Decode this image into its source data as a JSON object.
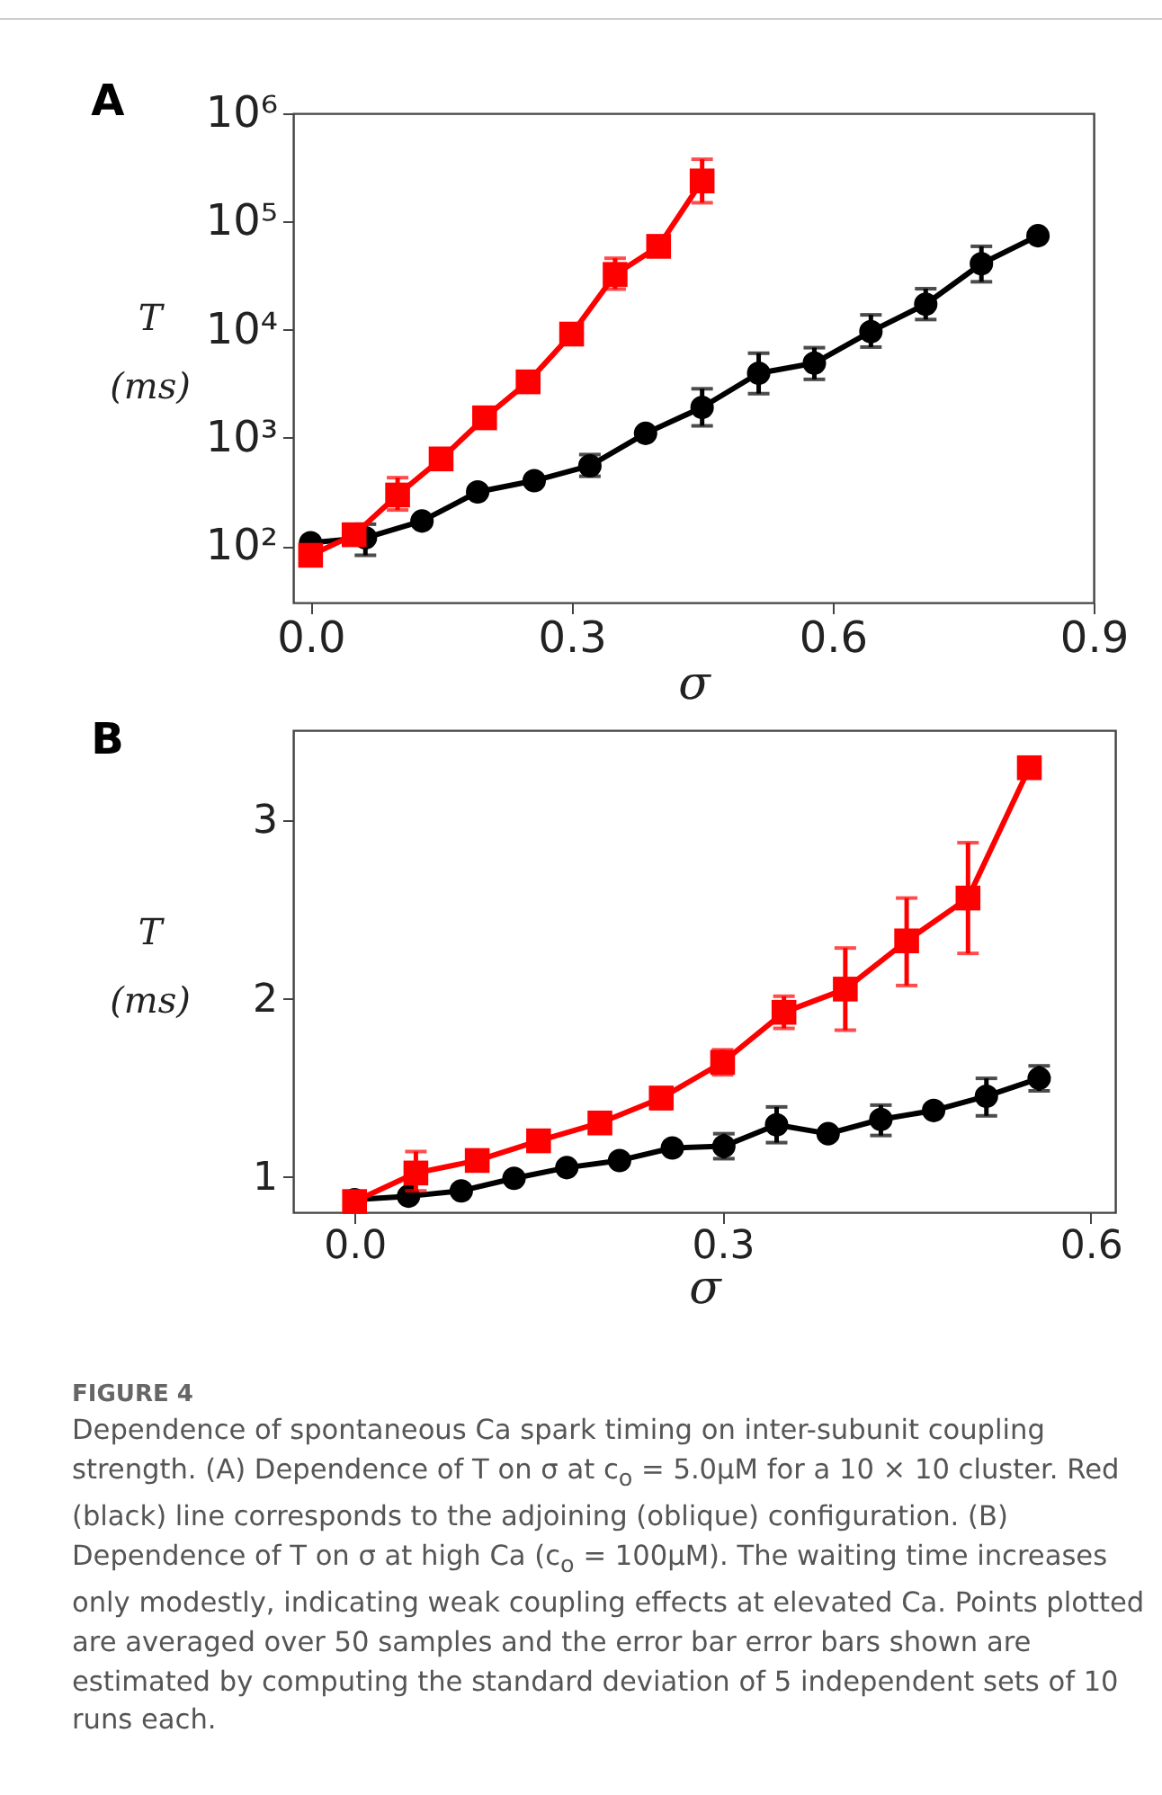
{
  "chart_data": [
    {
      "type": "line",
      "title": "A",
      "xlabel": "σ",
      "ylabel": "T (ms)",
      "log": "y",
      "grid": false,
      "legend": false,
      "xlim": [
        -0.02,
        0.9
      ],
      "xticks": [
        {
          "value": 0,
          "label": "0.0"
        },
        {
          "value": 0.3,
          "label": "0.3"
        },
        {
          "value": 0.6,
          "label": "0.6"
        },
        {
          "value": 0.9,
          "label": "0.9"
        }
      ],
      "ylim": [
        30,
        1000000
      ],
      "yticks": [
        {
          "value": 100,
          "label": "10²"
        },
        {
          "value": 1000,
          "label": "10³"
        },
        {
          "value": 10000,
          "label": "10⁴"
        },
        {
          "value": 100000,
          "label": "10⁵"
        },
        {
          "value": 1000000,
          "label": "10⁶"
        }
      ],
      "series": [
        {
          "color": "#ff0000",
          "marker": "square",
          "x": [
            0,
            0.05,
            0.1,
            0.15,
            0.2,
            0.25,
            0.3,
            0.35,
            0.4,
            0.45
          ],
          "values": [
            82,
            127,
            296,
            638,
            1530,
            3290,
            9100,
            32400,
            58900,
            237000
          ],
          "errors": [
            null,
            null,
            [
              215,
              428
            ],
            null,
            null,
            null,
            null,
            [
              23700,
              45700
            ],
            null,
            [
              149000,
              376000
            ]
          ]
        },
        {
          "color": "#000000",
          "marker": "circle",
          "x": [
            0,
            0.063,
            0.128,
            0.192,
            0.257,
            0.321,
            0.385,
            0.45,
            0.515,
            0.579,
            0.644,
            0.707,
            0.771,
            0.836
          ],
          "values": [
            107,
            119,
            170,
            316,
            401,
            551,
            1100,
            1910,
            3960,
            4900,
            9600,
            17200,
            40700,
            73800
          ],
          "errors": [
            null,
            [
              82,
              159
            ],
            null,
            null,
            null,
            [
              441,
              700
            ],
            null,
            [
              1290,
              2840
            ],
            [
              2560,
              6060
            ],
            [
              3470,
              6810
            ],
            [
              6900,
              13700
            ],
            [
              12400,
              23900
            ],
            [
              27700,
              58900
            ],
            null
          ]
        }
      ]
    },
    {
      "type": "line",
      "title": "B",
      "xlabel": "σ",
      "ylabel": "T (ms)",
      "grid": false,
      "legend": false,
      "xlim": [
        -0.05,
        0.62
      ],
      "xticks": [
        {
          "value": 0,
          "label": "0.0"
        },
        {
          "value": 0.3,
          "label": "0.3"
        },
        {
          "value": 0.6,
          "label": "0.6"
        }
      ],
      "ylim": [
        0.8,
        3.5
      ],
      "yticks": [
        1,
        2,
        3
      ],
      "series": [
        {
          "color": "#ff0000",
          "marker": "square",
          "x": [
            0,
            0.05,
            0.1,
            0.15,
            0.2,
            0.25,
            0.3,
            0.35,
            0.4,
            0.45,
            0.5,
            0.55
          ],
          "values": [
            0.86,
            1.02,
            1.09,
            1.2,
            1.3,
            1.44,
            1.64,
            1.92,
            2.05,
            2.32,
            2.56,
            3.29
          ],
          "errors": [
            null,
            [
              0.92,
              1.14
            ],
            null,
            null,
            null,
            [
              1.38,
              1.49
            ],
            [
              1.57,
              1.71
            ],
            [
              1.83,
              2.01
            ],
            [
              1.82,
              2.28
            ],
            [
              2.07,
              2.56
            ],
            [
              2.25,
              2.87
            ],
            null
          ]
        },
        {
          "color": "#000000",
          "marker": "circle",
          "x": [
            0,
            0.044,
            0.087,
            0.13,
            0.173,
            0.216,
            0.259,
            0.301,
            0.344,
            0.386,
            0.429,
            0.472,
            0.515,
            0.558
          ],
          "values": [
            0.87,
            0.89,
            0.92,
            0.99,
            1.05,
            1.09,
            1.16,
            1.17,
            1.29,
            1.24,
            1.32,
            1.37,
            1.45,
            1.55
          ],
          "errors": [
            null,
            null,
            null,
            null,
            null,
            null,
            null,
            [
              1.1,
              1.24
            ],
            [
              1.19,
              1.39
            ],
            null,
            [
              1.23,
              1.4
            ],
            null,
            [
              1.34,
              1.55
            ],
            [
              1.48,
              1.62
            ]
          ]
        }
      ],
      "annotations": [
        "FIGURE 4",
        "Dependence of spontaneous Ca spark timing on inter-subunit coupling strength. (A) Dependence of T on σ at c$_{o}$ = 5.0μM for a 10 × 10 cluster. Red (black) line corresponds to the adjoining (oblique) configuration. (B) Dependence of T on σ at high Ca (c$_{o}$ = 100μM). The waiting time increases only modestly, indicating weak coupling effects at elevated Ca. Points plotted are averaged over 50 samples and the error bar error bars shown are estimated by computing the standard deviation of 5 independent sets of 10 runs each."
      ]
    }
  ]
}
